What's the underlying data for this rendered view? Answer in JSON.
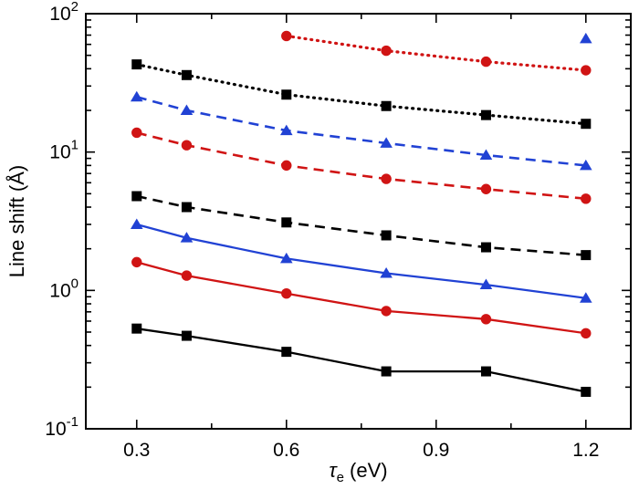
{
  "figure": {
    "background": "#ffffff"
  },
  "chart_data": {
    "type": "line",
    "title": "",
    "x_label": "τ_e (eV)",
    "y_label": "Line shift (Å)",
    "x_units": "eV",
    "y_units": "Å",
    "y_scale": "log",
    "xlim": [
      0.198,
      1.29
    ],
    "ylim": [
      0.1,
      100
    ],
    "grid": false,
    "legend": null,
    "x_major_ticks": [
      0.3,
      0.6,
      0.9,
      1.2
    ],
    "x_major_tick_labels": [
      "0.3",
      "0.6",
      "0.9",
      "1.2"
    ],
    "x_minor_ticks": [
      0.45,
      0.75,
      1.05
    ],
    "y_major_ticks": [
      0.1,
      1,
      10,
      100
    ],
    "y_major_tick_labels": [
      "10^-1",
      "10^0",
      "10^1",
      "10^2"
    ],
    "x": [
      0.3,
      0.4,
      0.6,
      0.8,
      1.0,
      1.2
    ],
    "colors": {
      "black": "#000000",
      "red": "#d01414",
      "blue": "#2142d4"
    },
    "series": [
      {
        "name": "black-solid",
        "color": "#000000",
        "line_style": "solid",
        "marker": "square",
        "values": [
          0.53,
          0.47,
          0.36,
          0.26,
          0.26,
          0.185
        ]
      },
      {
        "name": "red-solid",
        "color": "#d01414",
        "line_style": "solid",
        "marker": "circle",
        "values": [
          1.6,
          1.28,
          0.95,
          0.71,
          0.62,
          0.49
        ]
      },
      {
        "name": "blue-solid",
        "color": "#2142d4",
        "line_style": "solid",
        "marker": "triangle",
        "values": [
          3.0,
          2.4,
          1.7,
          1.33,
          1.1,
          0.88
        ]
      },
      {
        "name": "black-dashed",
        "color": "#000000",
        "line_style": "dashed",
        "marker": "square",
        "values": [
          4.8,
          4.0,
          3.1,
          2.5,
          2.05,
          1.8
        ]
      },
      {
        "name": "red-dashed",
        "color": "#d01414",
        "line_style": "dashed",
        "marker": "circle",
        "values": [
          13.8,
          11.2,
          8.0,
          6.4,
          5.4,
          4.6
        ]
      },
      {
        "name": "blue-dashed",
        "color": "#2142d4",
        "line_style": "dashed",
        "marker": "triangle",
        "values": [
          25,
          20,
          14.3,
          11.6,
          9.5,
          8.0
        ]
      },
      {
        "name": "black-dotted",
        "color": "#000000",
        "line_style": "dotted",
        "marker": "square",
        "values": [
          43,
          36,
          26,
          21.5,
          18.5,
          16
        ]
      },
      {
        "name": "red-dotted",
        "color": "#d01414",
        "line_style": "dotted",
        "marker": "circle",
        "values": [
          null,
          null,
          69,
          54,
          45,
          39
        ]
      },
      {
        "name": "blue-dotted",
        "color": "#2142d4",
        "line_style": "dotted",
        "marker": "triangle",
        "values": [
          null,
          null,
          null,
          null,
          null,
          66
        ]
      }
    ]
  }
}
